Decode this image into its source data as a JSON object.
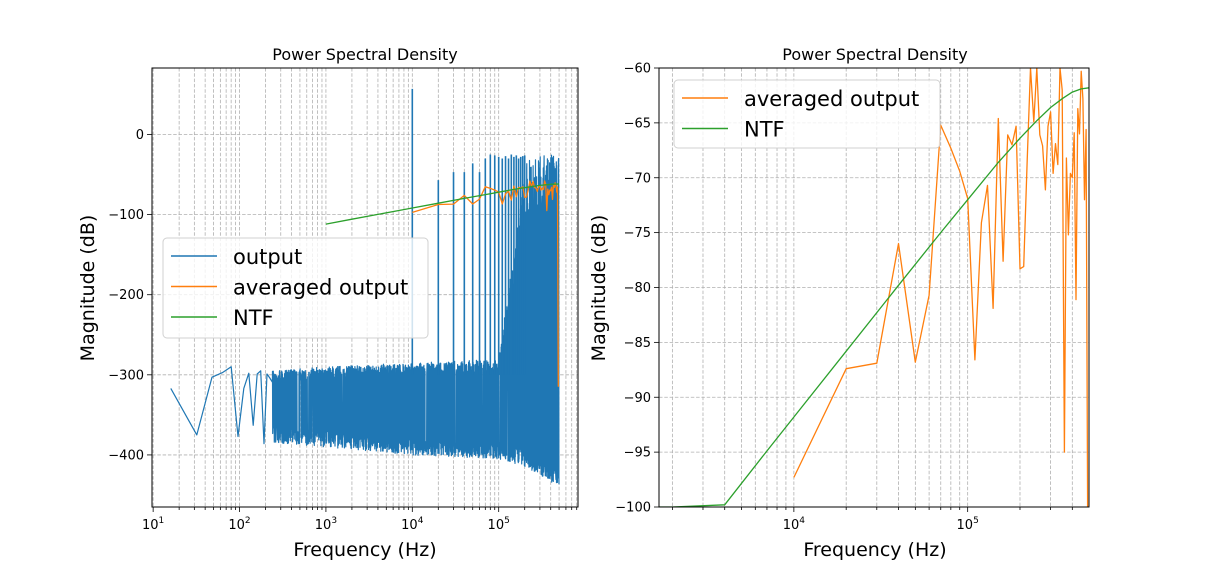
{
  "chart_data": [
    {
      "type": "line",
      "title": "Power Spectral Density",
      "xlabel": "Frequency (Hz)",
      "ylabel": "Magnitude (dB)",
      "xscale": "log",
      "xlim": [
        9.7,
        828000
      ],
      "ylim": [
        -465,
        83
      ],
      "xticks": [
        {
          "base": "10",
          "exp": "1",
          "value": 10
        },
        {
          "base": "10",
          "exp": "2",
          "value": 100
        },
        {
          "base": "10",
          "exp": "3",
          "value": 1000
        },
        {
          "base": "10",
          "exp": "4",
          "value": 10000
        },
        {
          "base": "10",
          "exp": "5",
          "value": 100000
        }
      ],
      "yticks": [
        0,
        -100,
        -200,
        -300,
        -400
      ],
      "grid": true,
      "legend_placement": "center-left",
      "series": [
        {
          "name": "output",
          "color": "#1f77b4",
          "low_freq_points": {
            "x": [
              16,
              32,
              48,
              64,
              80,
              96,
              112,
              128,
              144,
              160,
              176,
              192,
              208,
              224
            ],
            "y": [
              -317,
              -375,
              -303,
              -297,
              -290,
              -377,
              -317,
              -298,
              -363,
              -299,
              -295,
              -386,
              -299,
              -304
            ]
          },
          "tones": {
            "x": [
              10000,
              20000,
              30000,
              40000,
              50000,
              60000,
              70000,
              80000,
              90000,
              100000,
              110000,
              120000,
              130000,
              140000,
              150000,
              160000,
              170000,
              180000,
              190000,
              200000
            ],
            "y": [
              57,
              -57,
              -47,
              -47,
              -36,
              -47,
              -30,
              -25,
              -26,
              -28,
              -30,
              -27,
              -30,
              -25,
              -28,
              -26,
              -30,
              -28,
              -27,
              -26
            ]
          },
          "noise_floor_envelope": {
            "x": [
              250,
              1000,
              10000,
              100000,
              210000,
              500000
            ],
            "upper": [
              -295,
              -290,
              -285,
              -280,
              -25,
              -22
            ],
            "lower": [
              -385,
              -390,
              -400,
              -405,
              -415,
              -440
            ]
          }
        },
        {
          "name": "averaged output",
          "color": "#ff7f0e",
          "ref": "averaged_output"
        },
        {
          "name": "NTF",
          "color": "#2ca02c",
          "ref": "ntf"
        }
      ]
    },
    {
      "type": "line",
      "title": "Power Spectral Density",
      "xlabel": "Frequency (Hz)",
      "ylabel": "Magnitude (dB)",
      "xscale": "log",
      "xlim": [
        1675,
        499000
      ],
      "ylim": [
        -100,
        -60
      ],
      "xticks": [
        {
          "base": "10",
          "exp": "4",
          "value": 10000
        },
        {
          "base": "10",
          "exp": "5",
          "value": 100000
        }
      ],
      "yticks": [
        -60,
        -65,
        -70,
        -75,
        -80,
        -85,
        -90,
        -95,
        -100
      ],
      "grid": true,
      "legend_placement": "upper-left",
      "series": [
        {
          "name": "averaged output",
          "color": "#ff7f0e",
          "ref": "averaged_output"
        },
        {
          "name": "NTF",
          "color": "#2ca02c",
          "ref": "ntf"
        }
      ]
    }
  ],
  "averaged_output": {
    "x": [
      10000,
      20000,
      30000,
      40000,
      50000,
      60000,
      70000,
      80000,
      90000,
      100000,
      110000,
      120000,
      130000,
      140000,
      150000,
      160000,
      170000,
      180000,
      190000,
      200000,
      210000,
      220000,
      230000,
      240000,
      250000,
      260000,
      270000,
      280000,
      290000,
      300000,
      310000,
      320000,
      330000,
      340000,
      350000,
      360000,
      370000,
      380000,
      390000,
      400000,
      410000,
      420000,
      430000,
      440000,
      450000,
      460000,
      470000,
      480000,
      490000
    ],
    "y": [
      -97.3,
      -87.4,
      -86.9,
      -76.0,
      -86.8,
      -80.7,
      -65.2,
      -67.3,
      -69.4,
      -71.9,
      -86.6,
      -74.1,
      -70.7,
      -81.9,
      -64.6,
      -77.6,
      -66.1,
      -67.0,
      -65.3,
      -78.3,
      -78.1,
      -68.4,
      -58.0,
      -64.9,
      -58.5,
      -66.1,
      -67.1,
      -71.1,
      -65.3,
      -64.0,
      -69.6,
      -66.9,
      -68.8,
      -58.0,
      -62.0,
      -95.0,
      -68.2,
      -75.2,
      -69.6,
      -70.0,
      -65.9,
      -81.1,
      -63.7,
      -66.0,
      -60.3,
      -62.8,
      -72.0,
      -65.6,
      -315
    ]
  },
  "ntf": {
    "x": [
      1000,
      2000,
      4000,
      7000,
      10000,
      20000,
      40000,
      70000,
      100000,
      150000,
      200000,
      250000,
      300000,
      350000,
      400000,
      450000,
      500000
    ],
    "y": [
      -111.8,
      -105.8,
      -99.8,
      -94.9,
      -91.8,
      -85.8,
      -79.8,
      -75.0,
      -72.0,
      -68.6,
      -66.4,
      -64.8,
      -63.6,
      -62.8,
      -62.2,
      -61.9,
      -61.8
    ]
  }
}
